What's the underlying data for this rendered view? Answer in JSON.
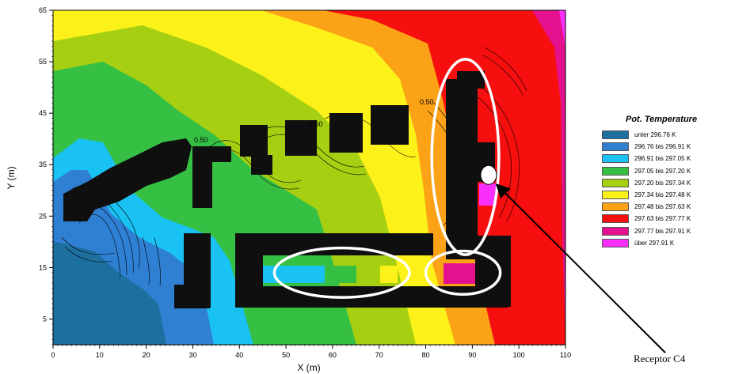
{
  "chart_data": {
    "type": "heatmap",
    "xlabel": "X (m)",
    "ylabel": "Y (m)",
    "xlim": [
      0,
      110
    ],
    "ylim": [
      0,
      65
    ],
    "x_ticks": [
      "0",
      "10",
      "20",
      "30",
      "40",
      "50",
      "60",
      "70",
      "80",
      "90",
      "100",
      "110"
    ],
    "y_ticks": [
      "5",
      "15",
      "25",
      "35",
      "45",
      "55",
      "65"
    ],
    "grid": false,
    "legend_placement": "right",
    "legend": {
      "title": "Pot. Temperature",
      "entries": [
        {
          "label": "unter 296.76 K",
          "color": "#1d6fa0"
        },
        {
          "label": "296.76 bis 296.91 K",
          "color": "#2f7fd2"
        },
        {
          "label": "296.91 bis 297.05 K",
          "color": "#19c2f3"
        },
        {
          "label": "297.05 bis 297.20 K",
          "color": "#35c044"
        },
        {
          "label": "297.20 bis 297.34 K",
          "color": "#a6cf12"
        },
        {
          "label": "297.34 bis 297.48 K",
          "color": "#fcf21a"
        },
        {
          "label": "297.48 bis 297.63 K",
          "color": "#fba217"
        },
        {
          "label": "297.63 bis 297.77 K",
          "color": "#f70f0f"
        },
        {
          "label": "297.77 bis 297.91 K",
          "color": "#e5108e"
        },
        {
          "label": "über 297.91 K",
          "color": "#fb2ffb"
        }
      ]
    },
    "highlight_ellipses_data": [
      {
        "cx": 88.5,
        "cy": 36.5,
        "rx": 7.2,
        "ry": 19
      },
      {
        "cx": 62,
        "cy": 14,
        "rx": 14.5,
        "ry": 4.8
      },
      {
        "cx": 88,
        "cy": 14,
        "rx": 8,
        "ry": 4.2
      }
    ],
    "receptor_data": {
      "x": 93.5,
      "y": 33
    },
    "annotation_text": "Receptor C4",
    "contour_label_text": "0.50"
  }
}
